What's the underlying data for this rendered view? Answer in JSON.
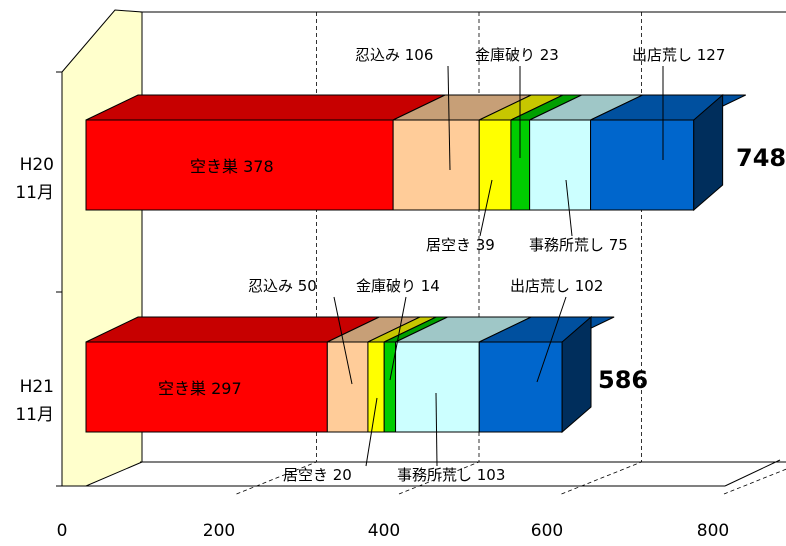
{
  "chart_data": {
    "type": "bar",
    "orientation": "horizontal",
    "stacked": true,
    "style": "3d",
    "xlim": [
      0,
      800
    ],
    "x_ticks": [
      "0",
      "200",
      "400",
      "600",
      "800"
    ],
    "grid": "dashed vertical",
    "categories": [
      [
        "H20",
        "11月"
      ],
      [
        "H21",
        "11月"
      ]
    ],
    "series": [
      {
        "name": "空き巣",
        "values": [
          378,
          297
        ],
        "color": "#ff0000"
      },
      {
        "name": "忍込み",
        "values": [
          106,
          50
        ],
        "color": "#ffcc99"
      },
      {
        "name": "居空き",
        "values": [
          39,
          20
        ],
        "color": "#ffff00"
      },
      {
        "name": "金庫破り",
        "values": [
          23,
          14
        ],
        "color": "#00cc00"
      },
      {
        "name": "事務所荒し",
        "values": [
          75,
          103
        ],
        "color": "#ccffff"
      },
      {
        "name": "出店荒し",
        "values": [
          127,
          102
        ],
        "color": "#0066cc"
      }
    ],
    "totals": [
      "748",
      "586"
    ],
    "data_labels": [
      [
        "空き巣 378",
        "忍込み 106",
        "居空き 39",
        "金庫破り 23",
        "事務所荒し 75",
        "出店荒し 127"
      ],
      [
        "空き巣 297",
        "忍込み 50",
        "居空き 20",
        "金庫破り 14",
        "事務所荒し 103",
        "出店荒し 102"
      ]
    ]
  }
}
